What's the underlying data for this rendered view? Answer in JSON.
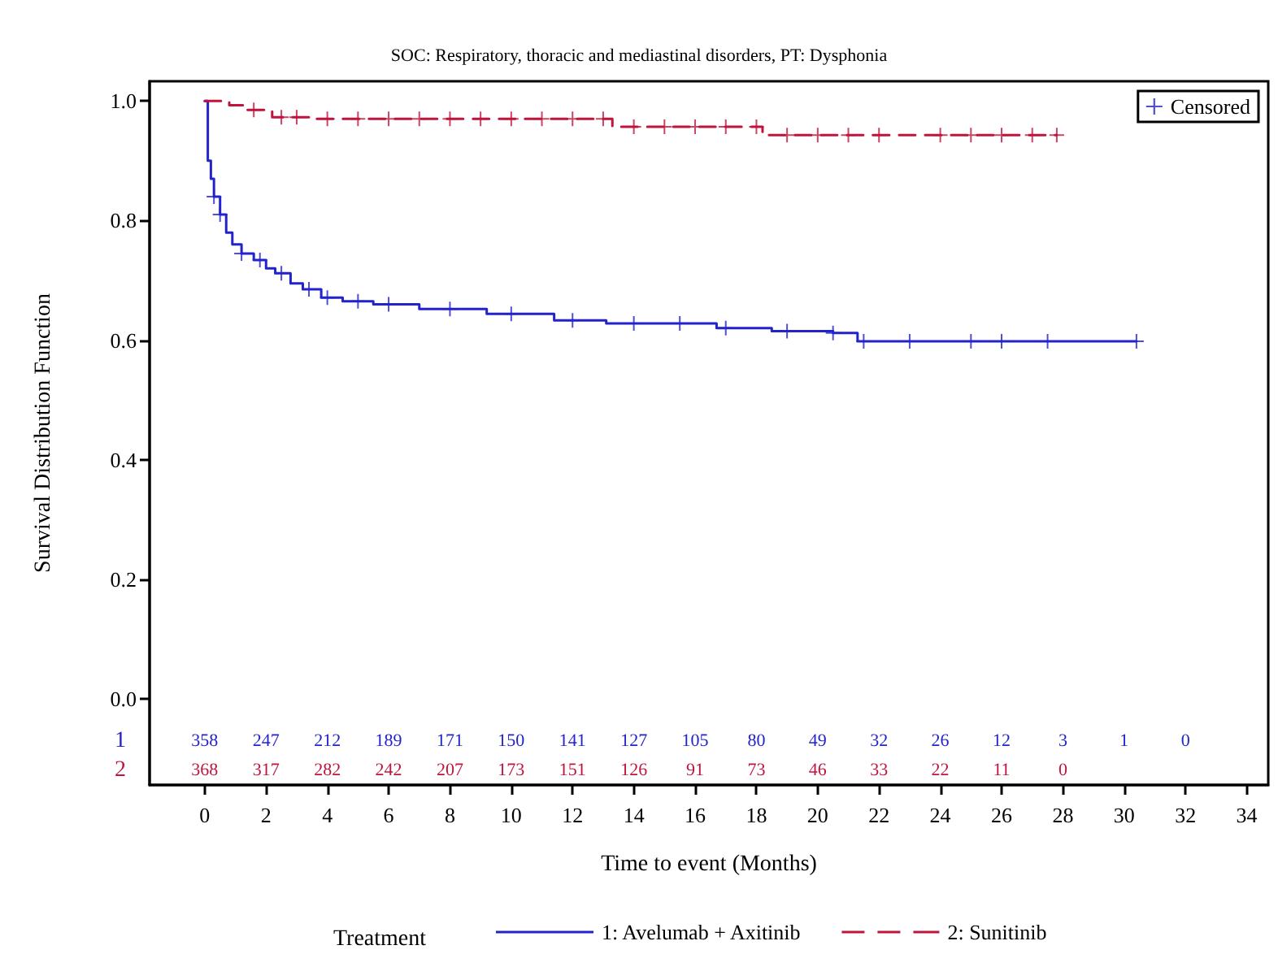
{
  "chart_data": {
    "type": "step",
    "title": "SOC: Respiratory, thoracic and mediastinal disorders, PT: Dysphonia",
    "xlabel": "Time to event (Months)",
    "ylabel": "Survival Distribution Function",
    "legend_title": "Treatment",
    "legend": "bottom",
    "marker": "none",
    "xlim": [
      -1.8,
      34.7
    ],
    "xticks": [
      0,
      2,
      4,
      6,
      8,
      10,
      12,
      14,
      16,
      18,
      20,
      22,
      24,
      26,
      28,
      30,
      32,
      34
    ],
    "ylim": [
      -0.144,
      1.033
    ],
    "yticks": [
      {
        "value": 0,
        "label": "0.0"
      },
      {
        "value": 0.2,
        "label": "0.2"
      },
      {
        "value": 0.4,
        "label": "0.4"
      },
      {
        "value": 0.6,
        "label": "0.6"
      },
      {
        "value": 0.8,
        "label": "0.8"
      },
      {
        "value": 1,
        "label": "1.0"
      }
    ],
    "series": [
      {
        "name": "1: Avelumab + Axitinib",
        "color": "#2323cc",
        "line_style": "solid",
        "x": [
          0,
          0.1,
          0.2,
          0.3,
          0.5,
          0.7,
          0.9,
          1.2,
          1.6,
          2.0,
          2.3,
          2.8,
          3.2,
          3.8,
          4.5,
          5.5,
          7,
          9.2,
          11.4,
          13.1,
          16.7,
          18.5,
          20.5,
          21.3,
          30.4
        ],
        "values": [
          1.0,
          0.9,
          0.87,
          0.84,
          0.81,
          0.78,
          0.76,
          0.745,
          0.734,
          0.72,
          0.712,
          0.695,
          0.685,
          0.671,
          0.665,
          0.66,
          0.652,
          0.644,
          0.633,
          0.628,
          0.62,
          0.615,
          0.612,
          0.598,
          0.598
        ]
      },
      {
        "name": "2: Sunitinib",
        "color": "#c0143c",
        "line_style": "dashed",
        "x": [
          0,
          0.8,
          1.3,
          2.2,
          3.5,
          13.3,
          18.2,
          27.8
        ],
        "values": [
          1.0,
          0.993,
          0.985,
          0.973,
          0.97,
          0.957,
          0.943,
          0.943
        ]
      },
      {
        "name": "Censored",
        "type": "scatter",
        "marker": "cross",
        "color": "#2323cc",
        "x": [
          0.3,
          0.5,
          1.2,
          1.8,
          2.5,
          3.4,
          4,
          5,
          6,
          8,
          10,
          12,
          14,
          15.5,
          17,
          19,
          20.5,
          21.5,
          23,
          25,
          26,
          27.5,
          30.4
        ],
        "values": [
          0.84,
          0.81,
          0.745,
          0.734,
          0.712,
          0.685,
          0.671,
          0.665,
          0.66,
          0.652,
          0.644,
          0.633,
          0.628,
          0.628,
          0.62,
          0.615,
          0.612,
          0.598,
          0.598,
          0.598,
          0.598,
          0.598,
          0.598
        ]
      },
      {
        "type": "scatter",
        "marker": "cross",
        "color": "#c0143c",
        "x": [
          1.6,
          2.5,
          3,
          4,
          5,
          6,
          7,
          8,
          9,
          10,
          11,
          12,
          13,
          14,
          15,
          16,
          17,
          18,
          19,
          20,
          21,
          22,
          24,
          25,
          26,
          27,
          27.8
        ],
        "values": [
          0.985,
          0.973,
          0.973,
          0.97,
          0.97,
          0.97,
          0.97,
          0.97,
          0.97,
          0.97,
          0.97,
          0.97,
          0.97,
          0.957,
          0.957,
          0.957,
          0.957,
          0.957,
          0.943,
          0.943,
          0.943,
          0.943,
          0.943,
          0.943,
          0.943,
          0.943,
          0.943
        ]
      }
    ],
    "annotations": [
      "1",
      "358 247 212 189 171 150 141 127 105 80 49 32 26 12 3 1 0",
      "2",
      "368 317 282 242 207 173 151 126 91 73 46 33 22 11 0"
    ]
  }
}
